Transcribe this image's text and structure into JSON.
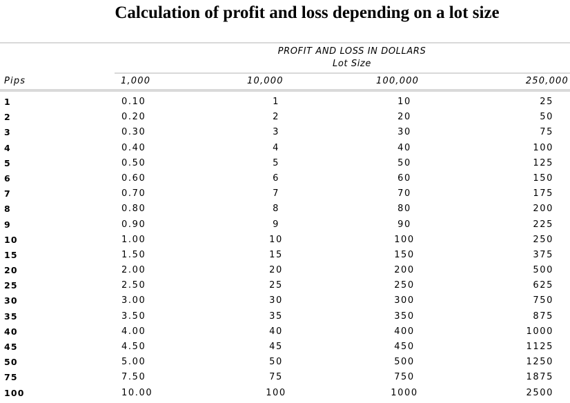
{
  "title": "Calculation of profit and loss depending on a lot size",
  "table": {
    "group_title": "PROFIT AND LOSS IN DOLLARS",
    "group_subtitle": "Lot Size",
    "pips_header": "Pips",
    "columns": [
      "1,000",
      "10,000",
      "100,000",
      "250,000"
    ],
    "rows": [
      {
        "pips": "1",
        "v1000": "0.10",
        "v10000": "1",
        "v100000": "10",
        "v250000": "25"
      },
      {
        "pips": "2",
        "v1000": "0.20",
        "v10000": "2",
        "v100000": "20",
        "v250000": "50"
      },
      {
        "pips": "3",
        "v1000": "0.30",
        "v10000": "3",
        "v100000": "30",
        "v250000": "75"
      },
      {
        "pips": "4",
        "v1000": "0.40",
        "v10000": "4",
        "v100000": "40",
        "v250000": "100"
      },
      {
        "pips": "5",
        "v1000": "0.50",
        "v10000": "5",
        "v100000": "50",
        "v250000": "125"
      },
      {
        "pips": "6",
        "v1000": "0.60",
        "v10000": "6",
        "v100000": "60",
        "v250000": "150"
      },
      {
        "pips": "7",
        "v1000": "0.70",
        "v10000": "7",
        "v100000": "70",
        "v250000": "175"
      },
      {
        "pips": "8",
        "v1000": "0.80",
        "v10000": "8",
        "v100000": "80",
        "v250000": "200"
      },
      {
        "pips": "9",
        "v1000": "0.90",
        "v10000": "9",
        "v100000": "90",
        "v250000": "225"
      },
      {
        "pips": "10",
        "v1000": "1.00",
        "v10000": "10",
        "v100000": "100",
        "v250000": "250"
      },
      {
        "pips": "15",
        "v1000": "1.50",
        "v10000": "15",
        "v100000": "150",
        "v250000": "375"
      },
      {
        "pips": "20",
        "v1000": "2.00",
        "v10000": "20",
        "v100000": "200",
        "v250000": "500"
      },
      {
        "pips": "25",
        "v1000": "2.50",
        "v10000": "25",
        "v100000": "250",
        "v250000": "625"
      },
      {
        "pips": "30",
        "v1000": "3.00",
        "v10000": "30",
        "v100000": "300",
        "v250000": "750"
      },
      {
        "pips": "35",
        "v1000": "3.50",
        "v10000": "35",
        "v100000": "350",
        "v250000": "875"
      },
      {
        "pips": "40",
        "v1000": "4.00",
        "v10000": "40",
        "v100000": "400",
        "v250000": "1000"
      },
      {
        "pips": "45",
        "v1000": "4.50",
        "v10000": "45",
        "v100000": "450",
        "v250000": "1125"
      },
      {
        "pips": "50",
        "v1000": "5.00",
        "v10000": "50",
        "v100000": "500",
        "v250000": "1250"
      },
      {
        "pips": "75",
        "v1000": "7.50",
        "v10000": "75",
        "v100000": "750",
        "v250000": "1875"
      },
      {
        "pips": "100",
        "v1000": "10.00",
        "v10000": "100",
        "v100000": "1000",
        "v250000": "2500"
      }
    ]
  }
}
